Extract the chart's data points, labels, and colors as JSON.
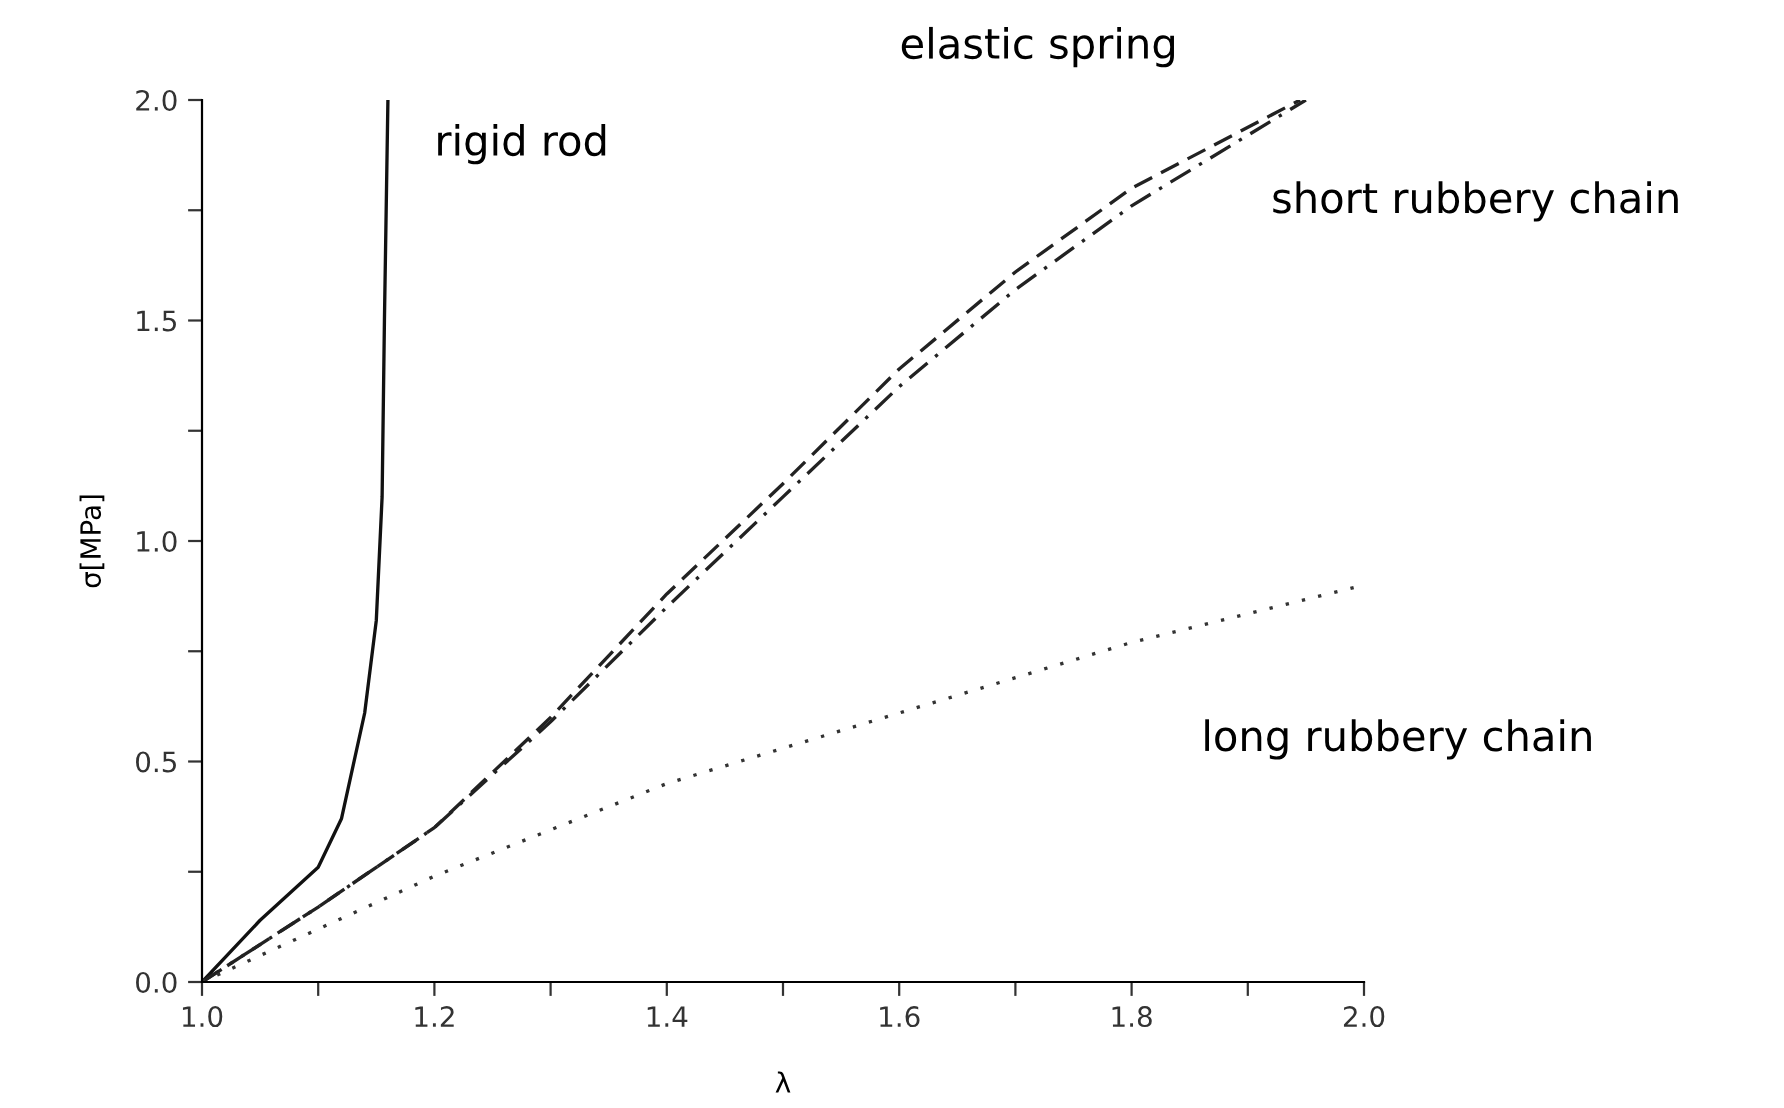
{
  "chart_data": {
    "type": "line",
    "xlabel": "λ",
    "ylabel": "σ[MPa]",
    "xlim": [
      1.0,
      2.0
    ],
    "ylim": [
      0.0,
      2.0
    ],
    "xticks": [
      {
        "value": 1.0,
        "label": "1.0"
      },
      {
        "value": 1.1,
        "label": null
      },
      {
        "value": 1.2,
        "label": "1.2"
      },
      {
        "value": 1.3,
        "label": null
      },
      {
        "value": 1.4,
        "label": "1.4"
      },
      {
        "value": 1.5,
        "label": null
      },
      {
        "value": 1.6,
        "label": "1.6"
      },
      {
        "value": 1.7,
        "label": null
      },
      {
        "value": 1.8,
        "label": "1.8"
      },
      {
        "value": 1.9,
        "label": null
      },
      {
        "value": 2.0,
        "label": "2.0"
      }
    ],
    "yticks": [
      {
        "value": 0.0,
        "label": "0.0"
      },
      {
        "value": 0.25,
        "label": null
      },
      {
        "value": 0.5,
        "label": "0.5"
      },
      {
        "value": 0.75,
        "label": null
      },
      {
        "value": 1.0,
        "label": "1.0"
      },
      {
        "value": 1.25,
        "label": null
      },
      {
        "value": 1.5,
        "label": "1.5"
      },
      {
        "value": 1.75,
        "label": null
      },
      {
        "value": 2.0,
        "label": "2.0"
      }
    ],
    "grid": false,
    "legend": false,
    "series": [
      {
        "name": "rigid rod",
        "color": "#111111",
        "line_style": "solid",
        "x": [
          1.0,
          1.05,
          1.1,
          1.12,
          1.14,
          1.15,
          1.155,
          1.157,
          1.16
        ],
        "values": [
          0.0,
          0.14,
          0.26,
          0.37,
          0.61,
          0.82,
          1.1,
          1.5,
          2.0
        ]
      },
      {
        "name": "elastic spring",
        "color": "#222222",
        "line_style": "dashed",
        "x": [
          1.0,
          1.1,
          1.2,
          1.3,
          1.4,
          1.5,
          1.6,
          1.7,
          1.8,
          1.945
        ],
        "values": [
          0.0,
          0.17,
          0.35,
          0.6,
          0.88,
          1.13,
          1.39,
          1.61,
          1.8,
          2.0
        ]
      },
      {
        "name": "short rubbery chain",
        "color": "#222222",
        "line_style": "dashdot",
        "x": [
          1.0,
          1.1,
          1.2,
          1.3,
          1.4,
          1.5,
          1.6,
          1.7,
          1.8,
          1.95
        ],
        "values": [
          0.0,
          0.17,
          0.35,
          0.59,
          0.85,
          1.1,
          1.35,
          1.57,
          1.76,
          2.0
        ]
      },
      {
        "name": "long rubbery chain",
        "color": "#333333",
        "line_style": "dotted",
        "x": [
          1.0,
          1.1,
          1.2,
          1.4,
          1.6,
          1.8,
          2.0
        ],
        "values": [
          0.0,
          0.12,
          0.24,
          0.45,
          0.61,
          0.77,
          0.9
        ]
      }
    ]
  }
}
